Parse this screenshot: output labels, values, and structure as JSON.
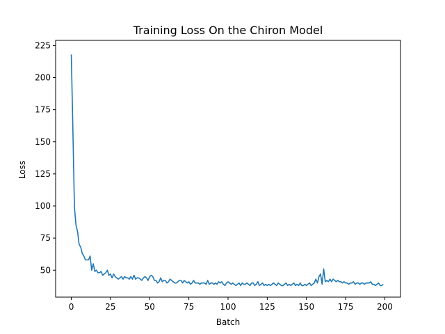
{
  "chart_data": {
    "type": "line",
    "title": "Training Loss On the Chiron Model",
    "xlabel": "Batch",
    "ylabel": "Loss",
    "xlim": [
      -10,
      210
    ],
    "ylim": [
      29,
      229
    ],
    "xticks": [
      0,
      25,
      50,
      75,
      100,
      125,
      150,
      175,
      200
    ],
    "yticks": [
      50,
      75,
      100,
      125,
      150,
      175,
      200,
      225
    ],
    "grid": false,
    "legend": "none",
    "series": [
      {
        "color": "#1f77b4",
        "y": [
          218,
          160,
          99,
          85,
          80,
          70,
          68,
          63,
          61,
          58,
          58,
          58,
          61,
          50,
          55,
          49,
          50,
          48,
          48,
          49,
          46,
          47,
          48,
          50,
          46,
          47,
          44,
          47,
          45,
          44,
          43,
          44,
          45,
          43,
          45,
          44,
          44,
          43,
          45,
          43,
          46,
          43,
          44,
          44,
          43,
          42,
          44,
          45,
          44,
          42,
          45,
          46,
          45,
          42,
          42,
          40,
          41,
          44,
          41,
          42,
          42,
          40,
          41,
          43,
          42,
          41,
          40,
          40,
          41,
          42,
          42,
          40,
          42,
          41,
          40,
          41,
          39,
          40,
          42,
          40,
          40,
          40,
          39,
          40,
          40,
          40,
          39,
          42,
          39,
          40,
          40,
          39,
          40,
          39,
          41,
          40,
          41,
          39,
          38,
          40,
          41,
          40,
          39,
          40,
          39,
          38,
          39,
          40,
          38,
          40,
          39,
          39,
          40,
          39,
          38,
          40,
          40,
          38,
          39,
          41,
          38,
          39,
          40,
          38,
          39,
          38,
          39,
          38,
          39,
          40,
          39,
          38,
          40,
          39,
          38,
          38,
          39,
          40,
          38,
          39,
          38,
          39,
          40,
          38,
          39,
          38,
          40,
          38,
          38,
          39,
          38,
          39,
          40,
          38,
          39,
          40,
          43,
          40,
          45,
          47,
          39,
          51,
          41,
          42,
          41,
          43,
          41,
          43,
          42,
          41,
          42,
          41,
          41,
          40,
          41,
          40,
          40,
          39,
          40,
          40,
          41,
          39,
          40,
          40,
          39,
          40,
          40,
          39,
          40,
          40,
          40,
          41,
          39,
          39,
          38,
          39,
          40,
          38,
          38,
          39
        ]
      }
    ]
  }
}
